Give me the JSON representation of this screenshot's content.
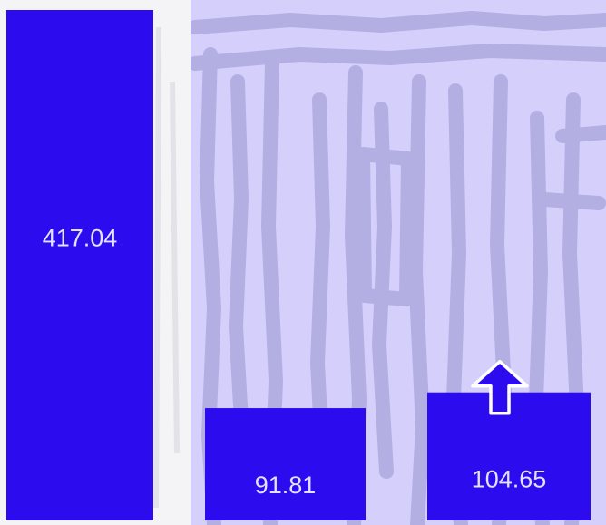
{
  "chart_data": {
    "type": "bar",
    "categories": [
      "",
      "",
      ""
    ],
    "values": [
      417.04,
      91.81,
      104.65
    ],
    "value_labels": [
      "417.04",
      "91.81",
      "104.65"
    ],
    "title": "",
    "xlabel": "",
    "ylabel": "",
    "ylim": [
      0,
      420
    ],
    "grid": false,
    "legend": "none",
    "bar_color": "#2d0bef",
    "label_color": "#e4e2ff",
    "panel_color": "#d4d0fb",
    "texture_color": "#b3afe3",
    "annotation": {
      "type": "up-arrow",
      "target_index": 2,
      "color": "#2d0bef"
    }
  }
}
